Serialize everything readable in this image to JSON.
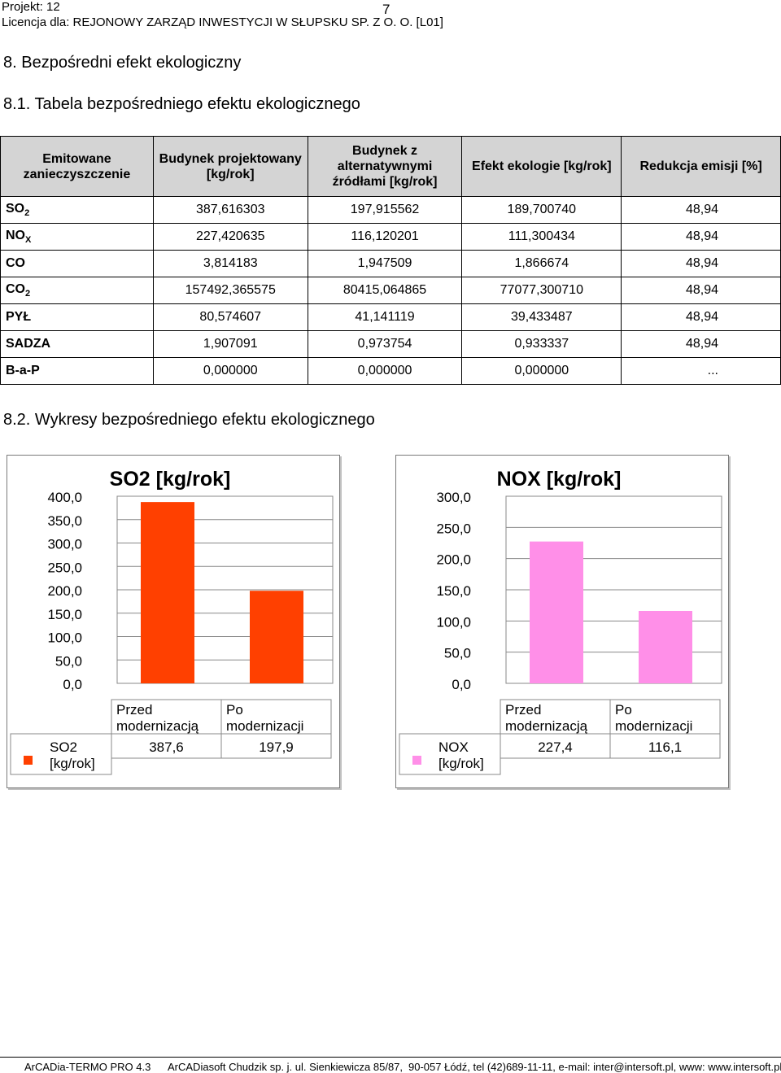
{
  "header": {
    "project": "Projekt: 12",
    "page_number": "7",
    "license": "Licencja dla: REJONOWY ZARZĄD INWESTYCJI W SŁUPSKU SP. Z O. O. [L01]"
  },
  "section8": "8. Bezpośredni efekt ekologiczny",
  "section81": "8.1. Tabela bezpośredniego efektu ekologicznego",
  "section82": "8.2. Wykresy bezpośredniego efektu ekologicznego",
  "table": {
    "headers": [
      "Emitowane zanieczyszczenie",
      "Budynek projektowany [kg/rok]",
      "Budynek z alternatywnymi źródłami [kg/rok]",
      "Efekt ekologie [kg/rok]",
      "Redukcja emisji [%]"
    ],
    "rows": [
      {
        "name": "SO",
        "sub": "2",
        "v1": "387,616303",
        "v2": "197,915562",
        "v3": "189,700740",
        "v4": "48,94"
      },
      {
        "name": "NO",
        "sub": "X",
        "v1": "227,420635",
        "v2": "116,120201",
        "v3": "111,300434",
        "v4": "48,94"
      },
      {
        "name": "CO",
        "sub": "",
        "v1": "3,814183",
        "v2": "1,947509",
        "v3": "1,866674",
        "v4": "48,94"
      },
      {
        "name": "CO",
        "sub": "2",
        "v1": "157492,365575",
        "v2": "80415,064865",
        "v3": "77077,300710",
        "v4": "48,94"
      },
      {
        "name": "PYŁ",
        "sub": "",
        "v1": "80,574607",
        "v2": "41,141119",
        "v3": "39,433487",
        "v4": "48,94"
      },
      {
        "name": "SADZA",
        "sub": "",
        "v1": "1,907091",
        "v2": "0,973754",
        "v3": "0,933337",
        "v4": "48,94"
      },
      {
        "name": "B-a-P",
        "sub": "",
        "v1": "0,000000",
        "v2": "0,000000",
        "v3": "0,000000",
        "v4": "..."
      }
    ]
  },
  "chart_data": [
    {
      "type": "bar",
      "title": "SO2 [kg/rok]",
      "categories": [
        "Przed modernizacją",
        "Po modernizacji"
      ],
      "series": [
        {
          "name": "SO2 [kg/rok]",
          "values": [
            387.6,
            197.9
          ]
        }
      ],
      "value_labels": [
        "387,6",
        "197,9"
      ],
      "ylim": [
        0,
        400
      ],
      "yticks": [
        "400,0",
        "350,0",
        "300,0",
        "250,0",
        "200,0",
        "150,0",
        "100,0",
        "50,0",
        "0,0"
      ],
      "ytick_values": [
        400,
        350,
        300,
        250,
        200,
        150,
        100,
        50,
        0
      ],
      "color": "#ff4000",
      "grid": true,
      "legend": "data table below chart"
    },
    {
      "type": "bar",
      "title": "NOX [kg/rok]",
      "categories": [
        "Przed modernizacją",
        "Po modernizacji"
      ],
      "series": [
        {
          "name": "NOX [kg/rok]",
          "values": [
            227.4,
            116.1
          ]
        }
      ],
      "value_labels": [
        "227,4",
        "116,1"
      ],
      "ylim": [
        0,
        300
      ],
      "yticks": [
        "300,0",
        "250,0",
        "200,0",
        "150,0",
        "100,0",
        "50,0",
        "0,0"
      ],
      "ytick_values": [
        300,
        250,
        200,
        150,
        100,
        50,
        0
      ],
      "color": "#ff8fe8",
      "grid": true,
      "legend": "data table below chart"
    }
  ],
  "footer": {
    "app": "ArCADia-TERMO PRO 4.3",
    "company": "ArCADiasoft Chudzik sp. j. ul. Sienkiewicza 85/87,",
    "contact": "90-057 Łódź, tel (42)689-11-11, e-mail: inter@intersoft.pl, www: www.intersoft.pl"
  }
}
